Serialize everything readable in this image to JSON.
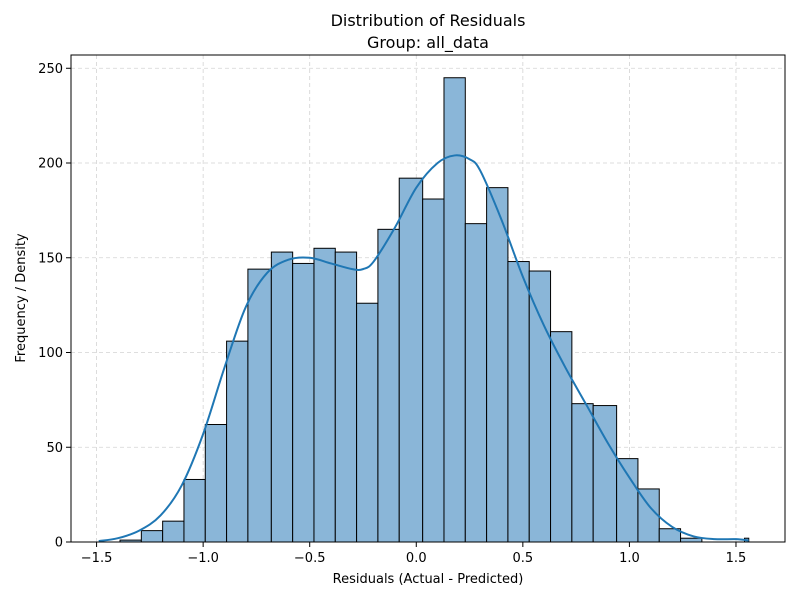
{
  "chart_data": {
    "type": "bar",
    "title": "Distribution of Residuals",
    "subtitle": "Group: all_data",
    "xlabel": "Residuals (Actual - Predicted)",
    "ylabel": "Frequency / Density",
    "xlim": [
      -1.62,
      1.73
    ],
    "ylim": [
      0,
      257
    ],
    "xticks": [
      -1.5,
      -1.0,
      -0.5,
      0.0,
      0.5,
      1.0,
      1.5
    ],
    "xtick_labels": [
      "−1.5",
      "−1.0",
      "−0.5",
      "0.0",
      "0.5",
      "1.0",
      "1.5"
    ],
    "yticks": [
      0,
      50,
      100,
      150,
      200,
      250
    ],
    "ytick_labels": [
      "0",
      "50",
      "100",
      "150",
      "200",
      "250"
    ],
    "grid": true,
    "bins": [
      {
        "x0": -1.49,
        "x1": -1.39,
        "count": 0
      },
      {
        "x0": -1.39,
        "x1": -1.29,
        "count": 1
      },
      {
        "x0": -1.29,
        "x1": -1.19,
        "count": 6
      },
      {
        "x0": -1.19,
        "x1": -1.09,
        "count": 11
      },
      {
        "x0": -1.09,
        "x1": -0.99,
        "count": 33
      },
      {
        "x0": -0.99,
        "x1": -0.89,
        "count": 62
      },
      {
        "x0": -0.89,
        "x1": -0.79,
        "count": 106
      },
      {
        "x0": -0.79,
        "x1": -0.68,
        "count": 144
      },
      {
        "x0": -0.68,
        "x1": -0.58,
        "count": 153
      },
      {
        "x0": -0.58,
        "x1": -0.48,
        "count": 147
      },
      {
        "x0": -0.48,
        "x1": -0.38,
        "count": 155
      },
      {
        "x0": -0.38,
        "x1": -0.28,
        "count": 153
      },
      {
        "x0": -0.28,
        "x1": -0.18,
        "count": 126
      },
      {
        "x0": -0.18,
        "x1": -0.08,
        "count": 165
      },
      {
        "x0": -0.08,
        "x1": 0.03,
        "count": 192
      },
      {
        "x0": 0.03,
        "x1": 0.13,
        "count": 181
      },
      {
        "x0": 0.13,
        "x1": 0.23,
        "count": 245
      },
      {
        "x0": 0.23,
        "x1": 0.33,
        "count": 168
      },
      {
        "x0": 0.33,
        "x1": 0.43,
        "count": 187
      },
      {
        "x0": 0.43,
        "x1": 0.53,
        "count": 148
      },
      {
        "x0": 0.53,
        "x1": 0.63,
        "count": 143
      },
      {
        "x0": 0.63,
        "x1": 0.73,
        "count": 111
      },
      {
        "x0": 0.73,
        "x1": 0.83,
        "count": 73
      },
      {
        "x0": 0.83,
        "x1": 0.94,
        "count": 72
      },
      {
        "x0": 0.94,
        "x1": 1.04,
        "count": 44
      },
      {
        "x0": 1.04,
        "x1": 1.14,
        "count": 28
      },
      {
        "x0": 1.14,
        "x1": 1.24,
        "count": 7
      },
      {
        "x0": 1.24,
        "x1": 1.34,
        "count": 2
      },
      {
        "x0": 1.34,
        "x1": 1.44,
        "count": 0
      },
      {
        "x0": 1.44,
        "x1": 1.54,
        "count": 0
      },
      {
        "x0": 1.54,
        "x1": 1.56,
        "count": 2
      }
    ],
    "kde": {
      "x": [
        -1.49,
        -1.4,
        -1.3,
        -1.2,
        -1.1,
        -1.0,
        -0.9,
        -0.8,
        -0.7,
        -0.6,
        -0.5,
        -0.4,
        -0.3,
        -0.25,
        -0.2,
        -0.1,
        0.0,
        0.1,
        0.18,
        0.25,
        0.3,
        0.4,
        0.5,
        0.6,
        0.7,
        0.8,
        0.9,
        1.0,
        1.1,
        1.2,
        1.3,
        1.4,
        1.5,
        1.56
      ],
      "y": [
        0.5,
        2,
        6,
        14,
        30,
        57,
        92,
        124,
        142,
        149,
        150,
        147,
        144,
        144,
        148,
        166,
        187,
        200,
        204,
        202,
        196,
        170,
        140,
        114,
        92,
        72,
        52,
        34,
        18,
        8,
        3,
        1.5,
        1.5,
        0.8
      ]
    },
    "colors": {
      "bar_fill": "#8ab6d8",
      "bar_edge": "#000000",
      "kde_line": "#1f77b4"
    }
  }
}
